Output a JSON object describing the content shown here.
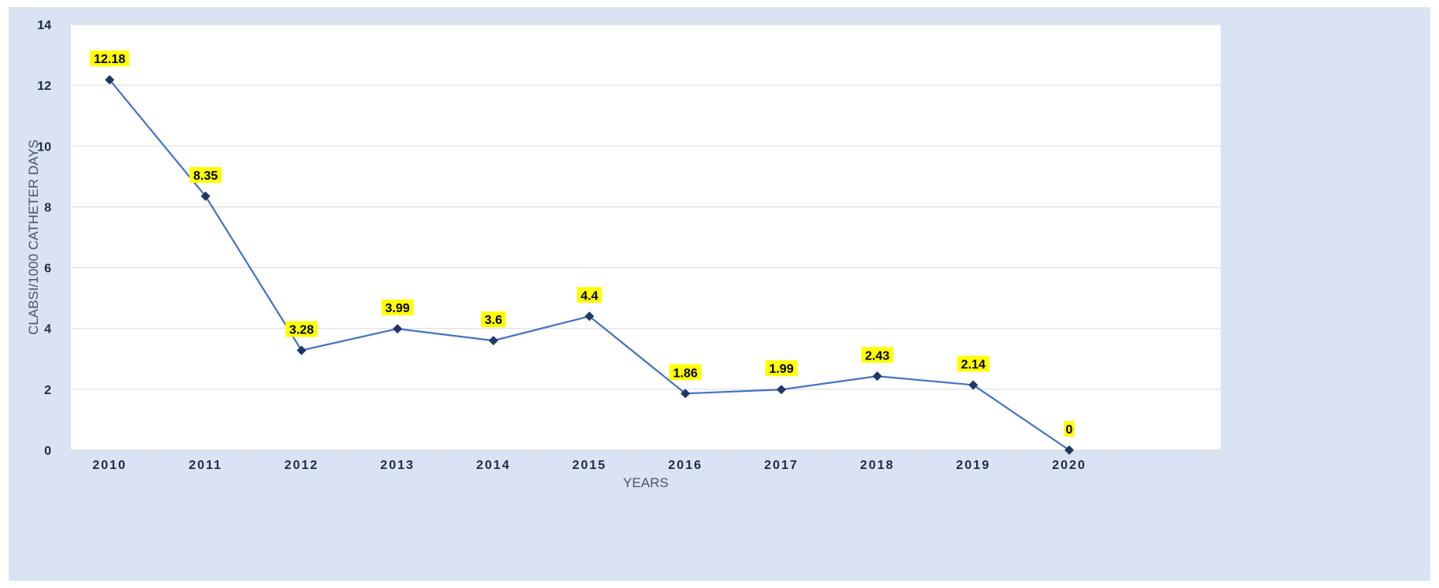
{
  "chart_data": {
    "type": "line",
    "title": "",
    "xlabel": "YEARS",
    "ylabel": "CLABSI/1000 CATHETER DAYS",
    "ylim": [
      0,
      14
    ],
    "yticks": [
      "0",
      "2",
      "4",
      "6",
      "8",
      "10",
      "12",
      "14"
    ],
    "categories": [
      "2010",
      "2011",
      "2012",
      "2013",
      "2014",
      "2015",
      "2016",
      "2017",
      "2018",
      "2019",
      "2020"
    ],
    "series": [
      {
        "values": [
          12.18,
          8.35,
          3.28,
          3.99,
          3.6,
          4.4,
          1.86,
          1.99,
          2.43,
          2.14,
          0
        ],
        "labels": [
          "12.18",
          "8.35",
          "3.28",
          "3.99",
          "3.6",
          "4.4",
          "1.86",
          "1.99",
          "2.43",
          "2.14",
          "0"
        ]
      }
    ],
    "grid": true,
    "legend": "none",
    "colors": {
      "line": "#4472c4",
      "marker": "#1f3864",
      "label_highlight": "#ffff00",
      "grid": "#d9d9d9",
      "frame": "#dae3f3",
      "plot_bg": "#ffffff"
    }
  }
}
